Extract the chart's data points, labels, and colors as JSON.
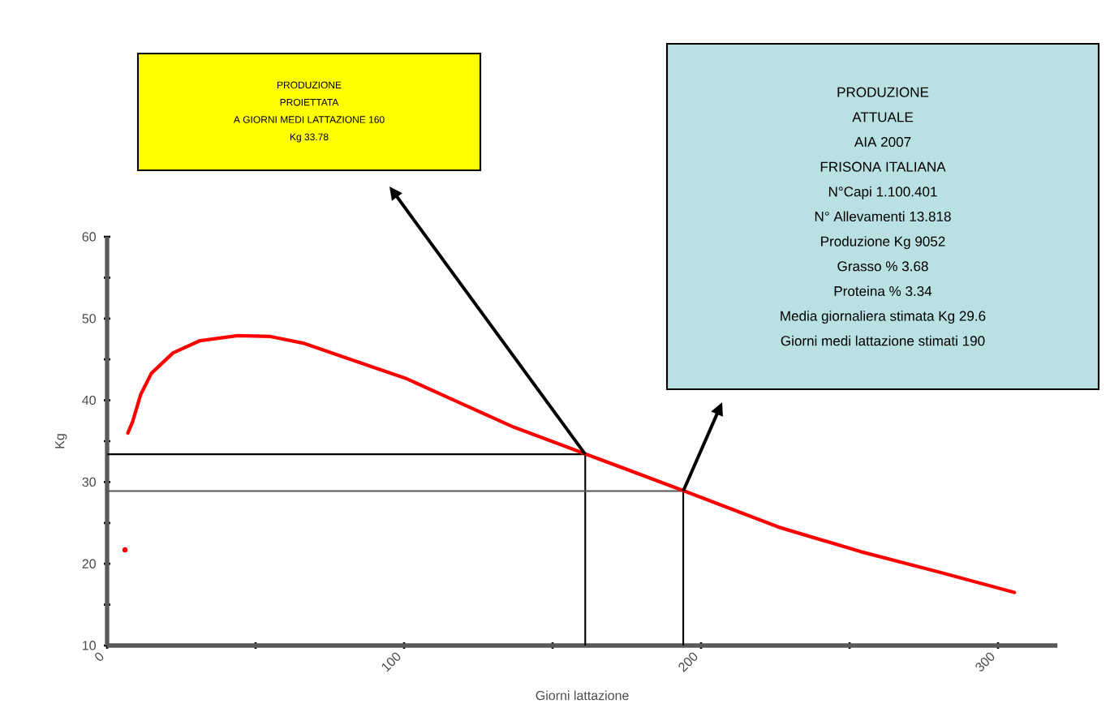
{
  "chart_data": {
    "type": "line",
    "xlabel": "Giorni lattazione",
    "ylabel": "Kg",
    "xlim": [
      0,
      320
    ],
    "ylim": [
      10,
      60
    ],
    "xticks": [
      0,
      {
        "value": 50,
        "label": null
      },
      100,
      {
        "value": 150,
        "label": null
      },
      200,
      {
        "value": 250,
        "label": null
      },
      300
    ],
    "yticks": [
      10,
      {
        "value": 15,
        "label": null
      },
      20,
      {
        "value": 25,
        "label": null
      },
      30,
      {
        "value": 35,
        "label": null
      },
      40,
      {
        "value": 45,
        "label": null
      },
      50,
      {
        "value": 55,
        "label": null
      },
      60
    ],
    "grid": false,
    "series": [
      {
        "color": "#ff0000",
        "x": [
          7,
          8.6,
          11.3,
          14.9,
          22.2,
          31.3,
          44,
          55,
          66,
          82,
          100.5,
          118.7,
          137,
          154,
          161.4,
          194.4,
          226,
          253.6,
          281,
          305.5
        ],
        "values": [
          36,
          37.4,
          40.7,
          43.3,
          45.8,
          47.3,
          47.9,
          47.8,
          47.0,
          45.0,
          42.7,
          39.7,
          36.7,
          34.4,
          33.4,
          28.9,
          24.5,
          21.5,
          18.9,
          16.5
        ]
      },
      {
        "type": "scatter",
        "color": "#ff0000",
        "x": [
          6
        ],
        "values": [
          21.7
        ]
      }
    ],
    "ref_lines": [
      {
        "axis": "x",
        "value": 161,
        "color": "#000000"
      },
      {
        "axis": "y",
        "value": 33.4,
        "color": "#000000"
      },
      {
        "axis": "x",
        "value": 194,
        "color": "#000000"
      },
      {
        "axis": "y",
        "value": 28.9,
        "color": "#555555"
      }
    ],
    "annotations": [
      "PRODUZIONE",
      "PROIETTATA",
      "A GIORNI MEDI LATTAZIONE 160",
      "Kg 33.78",
      "PRODUZIONE",
      "ATTUALE",
      "AIA 2007",
      "FRISONA ITALIANA",
      "N°Capi 1.100.401",
      "N° Allevamenti 13.818",
      "Produzione Kg 9052",
      "Grasso % 3.68",
      "Proteina % 3.34",
      "Media giornaliera stimata Kg 29.6",
      "Giorni medi lattazione stimati 190"
    ]
  }
}
